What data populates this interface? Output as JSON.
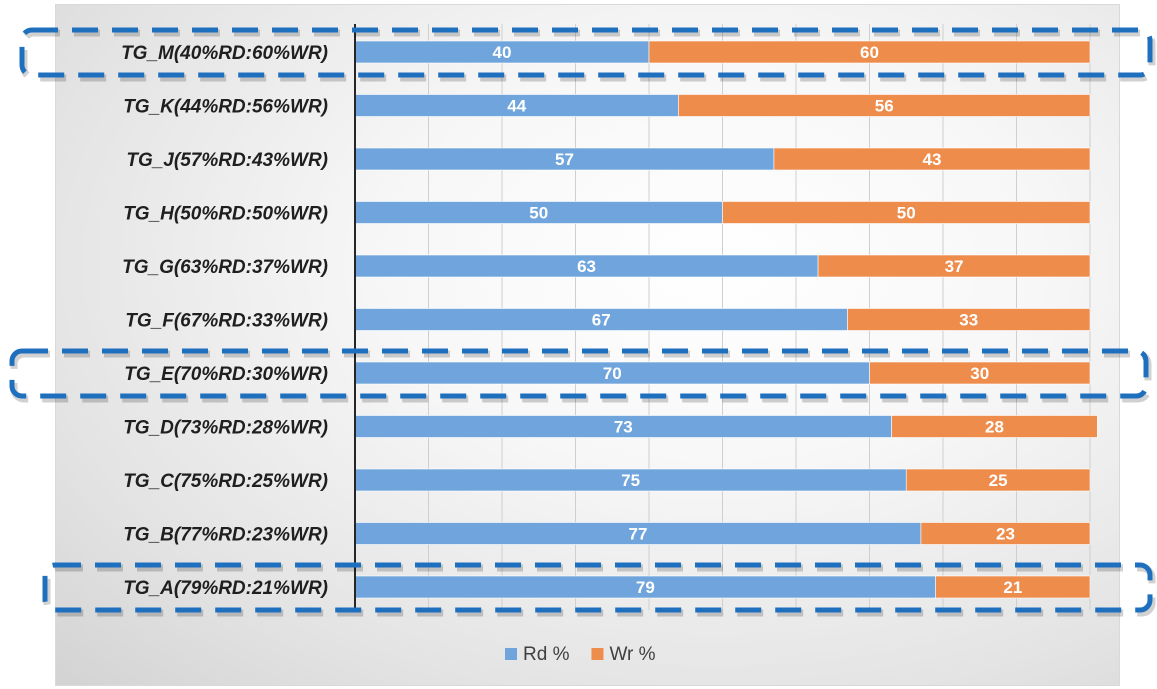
{
  "chart_data": {
    "type": "bar",
    "orientation": "horizontal",
    "stacked": true,
    "categories": [
      "TG_M(40%RD:60%WR)",
      "TG_K(44%RD:56%WR)",
      "TG_J(57%RD:43%WR)",
      "TG_H(50%RD:50%WR)",
      "TG_G(63%RD:37%WR)",
      "TG_F(67%RD:33%WR)",
      "TG_E(70%RD:30%WR)",
      "TG_D(73%RD:28%WR)",
      "TG_C(75%RD:25%WR)",
      "TG_B(77%RD:23%WR)",
      "TG_A(79%RD:21%WR)"
    ],
    "series": [
      {
        "name": "Rd %",
        "color": "#6fa5dc",
        "values": [
          40,
          44,
          57,
          50,
          63,
          67,
          70,
          73,
          75,
          77,
          79
        ]
      },
      {
        "name": "Wr %",
        "color": "#ee8c4c",
        "values": [
          60,
          56,
          43,
          50,
          37,
          33,
          30,
          28,
          25,
          23,
          21
        ]
      }
    ],
    "xlim": [
      0,
      100
    ],
    "grid": true,
    "legend_position": "bottom",
    "highlighted_categories": [
      "TG_M(40%RD:60%WR)",
      "TG_E(70%RD:30%WR)",
      "TG_A(79%RD:21%WR)"
    ],
    "highlight_color": "#1f6fbf"
  }
}
